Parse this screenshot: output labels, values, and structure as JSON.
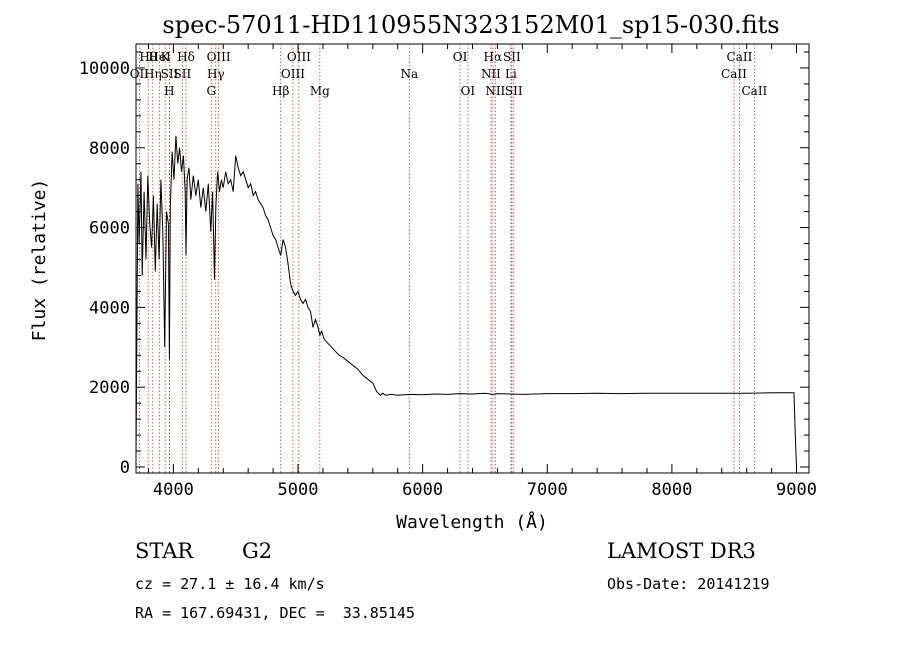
{
  "chart_data": {
    "type": "line",
    "title": "spec-57011-HD110955N323152M01_sp15-030.fits",
    "xlabel": "Wavelength (Å)",
    "ylabel": "Flux (relative)",
    "xlim": [
      3700,
      9100
    ],
    "ylim": [
      -150,
      10600
    ],
    "x_ticks": [
      4000,
      5000,
      6000,
      7000,
      8000,
      9000
    ],
    "y_ticks": [
      0,
      2000,
      4000,
      6000,
      8000,
      10000
    ],
    "grid": false,
    "series": [
      {
        "x": [
          3700,
          3715,
          3725,
          3740,
          3750,
          3765,
          3780,
          3795,
          3810,
          3825,
          3840,
          3855,
          3870,
          3885,
          3900,
          3915,
          3930,
          3945,
          3960,
          3968,
          3975,
          3990,
          4005,
          4020,
          4035,
          4050,
          4065,
          4080,
          4095,
          4101,
          4110,
          4125,
          4140,
          4160,
          4180,
          4200,
          4220,
          4240,
          4260,
          4280,
          4300,
          4315,
          4330,
          4340,
          4355,
          4370,
          4385,
          4400,
          4420,
          4440,
          4460,
          4480,
          4500,
          4520,
          4540,
          4560,
          4580,
          4600,
          4620,
          4640,
          4660,
          4680,
          4700,
          4720,
          4740,
          4760,
          4780,
          4800,
          4820,
          4840,
          4861,
          4880,
          4900,
          4920,
          4940,
          4960,
          4980,
          5000,
          5020,
          5040,
          5060,
          5080,
          5100,
          5120,
          5140,
          5160,
          5175,
          5190,
          5210,
          5240,
          5270,
          5300,
          5330,
          5360,
          5400,
          5440,
          5480,
          5520,
          5560,
          5600,
          5630,
          5660,
          5680,
          5700,
          5750,
          5800,
          5900,
          6000,
          6100,
          6200,
          6300,
          6400,
          6500,
          6562,
          6600,
          6700,
          6800,
          6900,
          7000,
          7200,
          7400,
          7600,
          7800,
          8000,
          8200,
          8400,
          8600,
          8800,
          8980,
          8990,
          9000
        ],
        "y": [
          200,
          7100,
          5600,
          7400,
          4800,
          6900,
          5200,
          7300,
          6100,
          5500,
          6800,
          4900,
          6600,
          5200,
          7200,
          5900,
          3000,
          6400,
          6100,
          2700,
          6500,
          7900,
          7200,
          8300,
          7600,
          8000,
          7400,
          7800,
          6900,
          5300,
          7200,
          7500,
          6700,
          7300,
          6800,
          7200,
          6500,
          7000,
          6400,
          7100,
          5900,
          6900,
          4700,
          6500,
          7400,
          6900,
          7200,
          7000,
          7400,
          7100,
          7200,
          6900,
          7800,
          7500,
          7300,
          7400,
          7200,
          7000,
          7100,
          6800,
          6900,
          6700,
          6600,
          6500,
          6300,
          6200,
          6000,
          5800,
          5700,
          5500,
          5300,
          5700,
          5500,
          5100,
          4600,
          4400,
          4300,
          4400,
          4200,
          4100,
          4200,
          4000,
          3900,
          3500,
          3700,
          3500,
          3300,
          3400,
          3200,
          3100,
          3000,
          2900,
          2800,
          2750,
          2650,
          2550,
          2450,
          2300,
          2200,
          2100,
          1900,
          1800,
          1850,
          1800,
          1820,
          1800,
          1820,
          1810,
          1830,
          1820,
          1840,
          1830,
          1850,
          1820,
          1840,
          1830,
          1820,
          1830,
          1840,
          1840,
          1850,
          1840,
          1850,
          1850,
          1850,
          1850,
          1850,
          1860,
          1860,
          800,
          0
        ]
      }
    ],
    "lines": [
      {
        "label": "OII",
        "x": 3727,
        "row": 1
      },
      {
        "label": "Hθ",
        "x": 3798,
        "row": 0
      },
      {
        "label": "Hη",
        "x": 3835,
        "row": 1
      },
      {
        "label": "HeI",
        "x": 3889,
        "row": 0
      },
      {
        "label": "K",
        "x": 3934,
        "row": 0
      },
      {
        "label": "SII",
        "x": 3969,
        "row": 1
      },
      {
        "label": "H",
        "x": 3968,
        "row": 2
      },
      {
        "label": "Hδ",
        "x": 4101,
        "row": 0
      },
      {
        "label": "SII",
        "x": 4072,
        "row": 1
      },
      {
        "label": "OIII",
        "x": 4363,
        "row": 0
      },
      {
        "label": "Hγ",
        "x": 4340,
        "row": 1
      },
      {
        "label": "G",
        "x": 4304,
        "row": 2
      },
      {
        "label": "Hβ",
        "x": 4861,
        "row": 2
      },
      {
        "label": "OIII",
        "x": 5007,
        "row": 0
      },
      {
        "label": "OIII",
        "x": 4959,
        "row": 1
      },
      {
        "label": "Mg",
        "x": 5175,
        "row": 2
      },
      {
        "label": "Na",
        "x": 5893,
        "row": 1
      },
      {
        "label": "OI",
        "x": 6300,
        "row": 0
      },
      {
        "label": "OI",
        "x": 6363,
        "row": 2
      },
      {
        "label": "Hα",
        "x": 6563,
        "row": 0
      },
      {
        "label": "NII",
        "x": 6548,
        "row": 1
      },
      {
        "label": "NII",
        "x": 6583,
        "row": 2
      },
      {
        "label": "SII",
        "x": 6716,
        "row": 0
      },
      {
        "label": "Li",
        "x": 6708,
        "row": 1
      },
      {
        "label": "SII",
        "x": 6731,
        "row": 2
      },
      {
        "label": "CaII",
        "x": 8542,
        "row": 0
      },
      {
        "label": "CaII",
        "x": 8498,
        "row": 1
      },
      {
        "label": "CaII",
        "x": 8662,
        "row": 2
      }
    ]
  },
  "info": {
    "class": "STAR",
    "subclass": "G2",
    "survey": "LAMOST DR3",
    "cz": "cz = 27.1 ± 16.4 km/s",
    "obs_date": "Obs-Date: 20141219",
    "coords": "RA = 167.69431, DEC =  33.85145"
  }
}
